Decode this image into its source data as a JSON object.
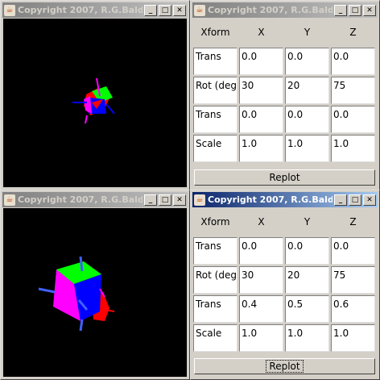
{
  "viewer_windows": [
    {
      "title": "Copyright 2007, R.G.Bald..."
    },
    {
      "title": "Copyright 2007, R.G.Bald..."
    }
  ],
  "control_windows": [
    {
      "title": "Copyright 2007, R.G.Bald...",
      "headers": [
        "Xform",
        "X",
        "Y",
        "Z"
      ],
      "rows": [
        {
          "label": "Trans",
          "x": "0.0",
          "y": "0.0",
          "z": "0.0"
        },
        {
          "label": "Rot (deg)",
          "x": "30",
          "y": "20",
          "z": "75"
        },
        {
          "label": "Trans",
          "x": "0.0",
          "y": "0.0",
          "z": "0.0"
        },
        {
          "label": "Scale",
          "x": "1.0",
          "y": "1.0",
          "z": "1.0"
        }
      ],
      "button_label": "Replot"
    },
    {
      "title": "Copyright 2007, R.G.Bald...",
      "headers": [
        "Xform",
        "X",
        "Y",
        "Z"
      ],
      "rows": [
        {
          "label": "Trans",
          "x": "0.0",
          "y": "0.0",
          "z": "0.0"
        },
        {
          "label": "Rot (deg)",
          "x": "30",
          "y": "20",
          "z": "75"
        },
        {
          "label": "Trans",
          "x": "0.4",
          "y": "0.5",
          "z": "0.6"
        },
        {
          "label": "Scale",
          "x": "1.0",
          "y": "1.0",
          "z": "1.0"
        }
      ],
      "button_label": "Replot"
    }
  ],
  "title_buttons": {
    "minimize": "_",
    "maximize": "□",
    "close": "✕"
  },
  "colors": {
    "canvas_bg": "#000000",
    "face_red": "#ff0000",
    "face_green": "#00ff00",
    "face_blue": "#0000ff",
    "face_magenta": "#ff00ff",
    "active_title": "#0a246a",
    "inactive_title": "#808080"
  }
}
